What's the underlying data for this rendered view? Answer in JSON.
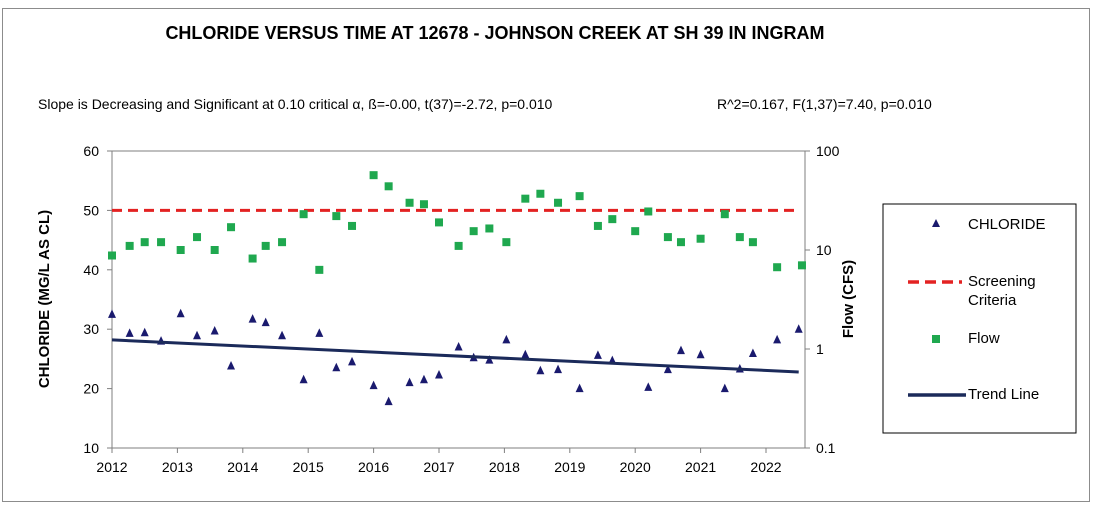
{
  "chart_data": {
    "type": "scatter",
    "title": "CHLORIDE VERSUS TIME AT 12678 - JOHNSON CREEK AT SH 39 IN INGRAM",
    "subtitle_left": "Slope is Decreasing and Significant at 0.10 critical α, ß=-0.00, t(37)=-2.72, p=0.010",
    "subtitle_right": "R^2=0.167,  F(1,37)=7.40, p=0.010",
    "ylabel": "CHLORIDE (MG/L AS CL)",
    "y2label": "Flow (CFS)",
    "xlim": [
      2012,
      2022.5
    ],
    "ylim": [
      10,
      60
    ],
    "y2lim": [
      0.1,
      100
    ],
    "y2scale": "log",
    "x_ticks": [
      "2012",
      "2013",
      "2014",
      "2015",
      "2016",
      "2017",
      "2018",
      "2019",
      "2020",
      "2021",
      "2022"
    ],
    "y_ticks": [
      "10",
      "20",
      "30",
      "40",
      "50",
      "60"
    ],
    "y2_ticks": [
      "0.1",
      "1",
      "10",
      "100"
    ],
    "screening_criteria": 50,
    "trend_line": {
      "start": [
        2012,
        28.2
      ],
      "end": [
        2022.5,
        22.8
      ]
    },
    "chloride": {
      "name": "CHLORIDE",
      "x": [
        2012.0,
        2012.27,
        2012.5,
        2012.75,
        2013.05,
        2013.3,
        2013.57,
        2013.82,
        2014.15,
        2014.35,
        2014.6,
        2014.93,
        2015.17,
        2015.43,
        2015.67,
        2016.0,
        2016.23,
        2016.55,
        2016.77,
        2017.0,
        2017.3,
        2017.53,
        2017.77,
        2018.03,
        2018.32,
        2018.55,
        2018.82,
        2019.15,
        2019.43,
        2019.65,
        2020.2,
        2020.5,
        2020.7,
        2021.0,
        2021.37,
        2021.6,
        2021.8,
        2022.17,
        2022.5
      ],
      "values": [
        32.5,
        29.3,
        29.4,
        28.0,
        32.6,
        28.9,
        29.7,
        23.8,
        31.7,
        31.1,
        28.9,
        21.5,
        29.3,
        23.5,
        24.5,
        20.5,
        17.8,
        21.0,
        21.5,
        22.3,
        27.0,
        25.2,
        24.8,
        28.2,
        25.7,
        23.0,
        23.2,
        20.0,
        25.6,
        24.7,
        20.2,
        23.2,
        26.4,
        25.7,
        20.0,
        23.3,
        25.9,
        28.2,
        30.0
      ]
    },
    "flow": {
      "name": "Flow",
      "x": [
        2012.0,
        2012.27,
        2012.5,
        2012.75,
        2013.05,
        2013.3,
        2013.57,
        2013.82,
        2014.15,
        2014.35,
        2014.6,
        2014.93,
        2015.17,
        2015.43,
        2015.67,
        2016.0,
        2016.23,
        2016.55,
        2016.77,
        2017.0,
        2017.3,
        2017.53,
        2017.77,
        2018.03,
        2018.32,
        2018.55,
        2018.82,
        2019.15,
        2019.43,
        2019.65,
        2020.0,
        2020.2,
        2020.5,
        2020.7,
        2021.0,
        2021.37,
        2021.6,
        2021.8,
        2022.17,
        2022.55
      ],
      "values": [
        8.8,
        11.0,
        12.0,
        12.0,
        10.0,
        13.5,
        10.0,
        17.0,
        8.2,
        11.0,
        12.0,
        23.0,
        6.3,
        22.0,
        17.5,
        57.0,
        44.0,
        30.0,
        29.0,
        19.0,
        11.0,
        15.5,
        16.5,
        12.0,
        33.0,
        37.0,
        30.0,
        35.0,
        17.5,
        20.5,
        15.5,
        24.5,
        13.5,
        12.0,
        13.0,
        23.0,
        13.5,
        12.0,
        6.7,
        7.0
      ]
    },
    "legend": {
      "chloride": "CHLORIDE",
      "screening_line1": "Screening",
      "screening_line2": "Criteria",
      "flow": "Flow",
      "trend": "Trend Line"
    },
    "colors": {
      "chloride": "#1a1a6e",
      "flow": "#1fa84f",
      "screening": "#e32222",
      "trend": "#1b2a5a"
    }
  }
}
